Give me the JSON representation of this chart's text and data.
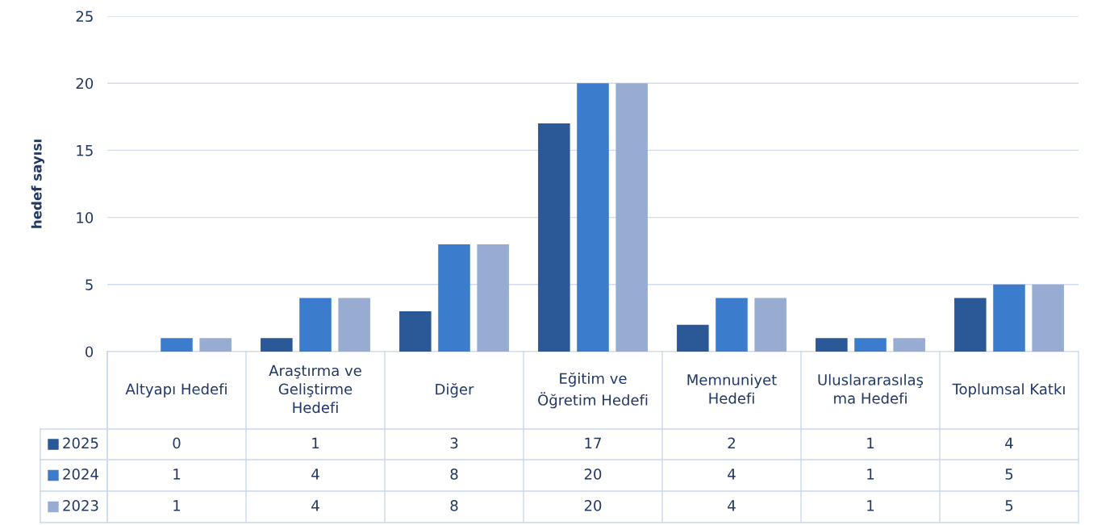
{
  "chart_data": {
    "type": "bar",
    "ylabel": "hedef sayısı",
    "categories": [
      "Altyapı Hedefi",
      "Araştırma ve\nGeliştirme\nHedefi",
      "Diğer",
      "Eğitim ve\nÖğretim Hedefi",
      "Memnuniyet\nHedefi",
      "Uluslararasılaş\nma Hedefi",
      "Toplumsal Katkı"
    ],
    "series": [
      {
        "name": "2025",
        "color": "#2b5896",
        "values": [
          0,
          1,
          3,
          17,
          2,
          1,
          4
        ]
      },
      {
        "name": "2024",
        "color": "#3b7ccc",
        "values": [
          1,
          4,
          8,
          20,
          4,
          1,
          5
        ]
      },
      {
        "name": "2023",
        "color": "#98acd2",
        "values": [
          1,
          4,
          8,
          20,
          4,
          1,
          5
        ]
      }
    ],
    "ylim": [
      0,
      25
    ],
    "yticks": [
      0,
      5,
      10,
      15,
      20,
      25
    ],
    "grid": "y",
    "legend": "bottom",
    "data_labels": true
  }
}
